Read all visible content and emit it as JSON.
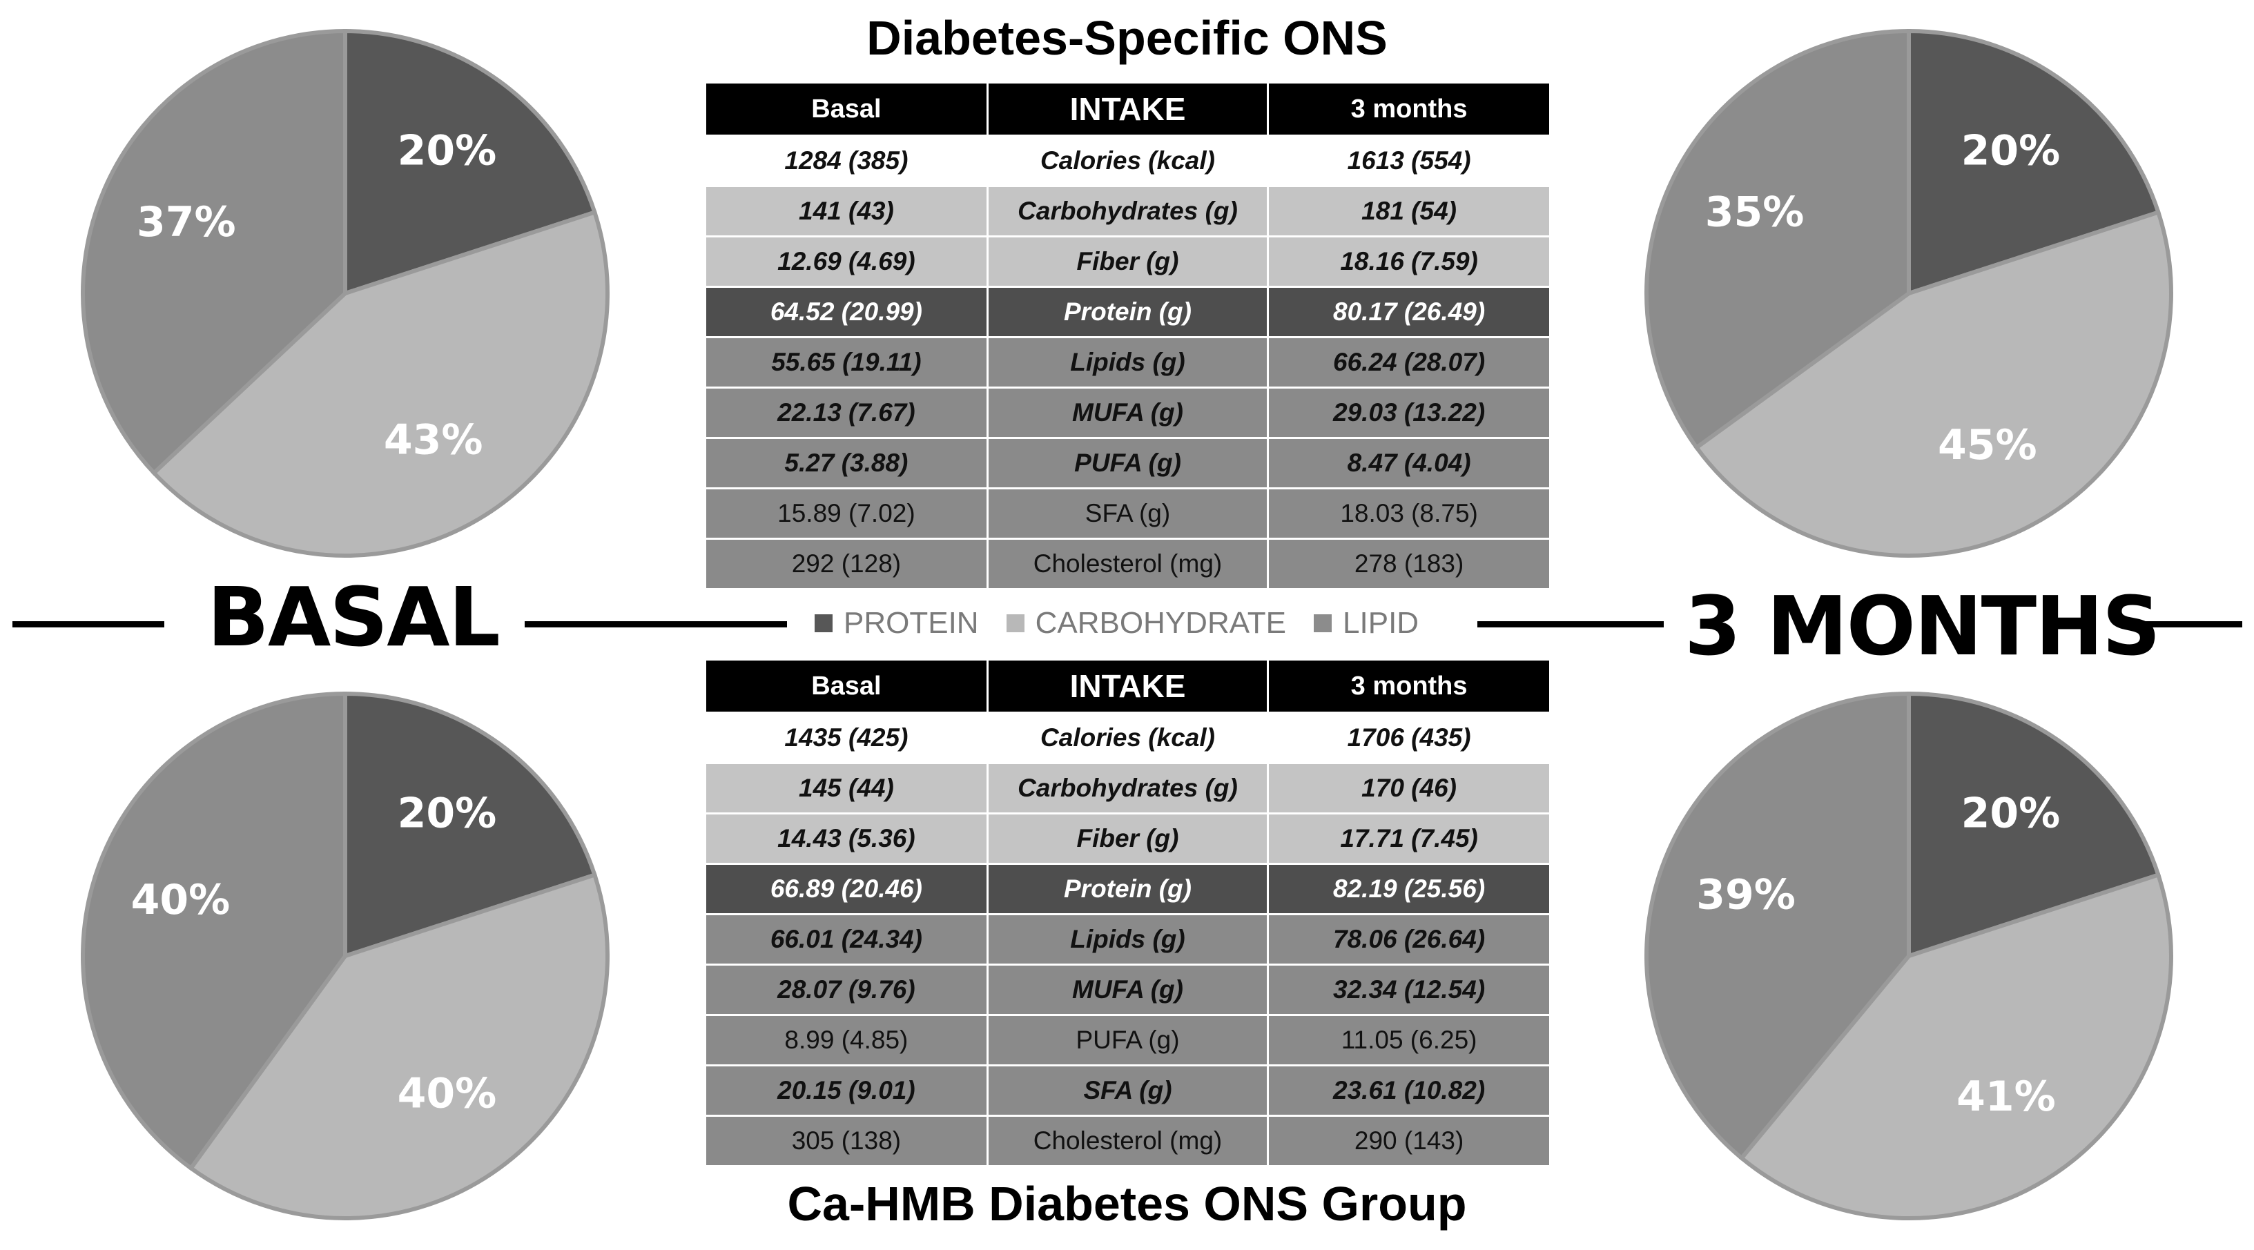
{
  "colors": {
    "protein": "#575757",
    "carbohydrate": "#b8b8b8",
    "lipid": "#8c8c8c",
    "stroke": "#9a9a9a"
  },
  "labels": {
    "basal": "BASAL",
    "three_months": "3 MONTHS"
  },
  "legend": [
    {
      "label": "PROTEIN",
      "color": "#575757"
    },
    {
      "label": "CARBOHYDRATE",
      "color": "#b8b8b8"
    },
    {
      "label": "LIPID",
      "color": "#8c8c8c"
    }
  ],
  "top": {
    "title": "Diabetes-Specific ONS",
    "headers": [
      "Basal",
      "INTAKE",
      "3 months"
    ],
    "rows": [
      {
        "basal": "1284 (385)",
        "intake": "Calories (kcal)",
        "months": "1613 (554)",
        "bold": true,
        "shade": "white"
      },
      {
        "basal": "141 (43)",
        "intake": "Carbohydrates (g)",
        "months": "181 (54)",
        "bold": true,
        "shade": "light"
      },
      {
        "basal": "12.69 (4.69)",
        "intake": "Fiber (g)",
        "months": "18.16 (7.59)",
        "bold": true,
        "shade": "light"
      },
      {
        "basal": "64.52 (20.99)",
        "intake": "Protein (g)",
        "months": "80.17 (26.49)",
        "bold": true,
        "shade": "dark"
      },
      {
        "basal": "55.65 (19.11)",
        "intake": "Lipids  (g)",
        "months": "66.24 (28.07)",
        "bold": true,
        "shade": "mid"
      },
      {
        "basal": "22.13 (7.67)",
        "intake": "MUFA (g)",
        "months": "29.03 (13.22)",
        "bold": true,
        "shade": "mid"
      },
      {
        "basal": "5.27 (3.88)",
        "intake": "PUFA (g)",
        "months": "8.47 (4.04)",
        "bold": true,
        "shade": "mid"
      },
      {
        "basal": "15.89 (7.02)",
        "intake": "SFA (g)",
        "months": "18.03 (8.75)",
        "bold": false,
        "shade": "mid"
      },
      {
        "basal": "292 (128)",
        "intake": "Cholesterol (mg)",
        "months": "278 (183)",
        "bold": false,
        "shade": "mid"
      }
    ]
  },
  "bottom": {
    "title": "Ca-HMB Diabetes ONS Group",
    "headers": [
      "Basal",
      "INTAKE",
      "3 months"
    ],
    "rows": [
      {
        "basal": "1435 (425)",
        "intake": "Calories (kcal)",
        "months": "1706 (435)",
        "bold": true,
        "shade": "white"
      },
      {
        "basal": "145 (44)",
        "intake": "Carbohydrates (g)",
        "months": "170 (46)",
        "bold": true,
        "shade": "light"
      },
      {
        "basal": "14.43 (5.36)",
        "intake": "Fiber (g)",
        "months": "17.71 (7.45)",
        "bold": true,
        "shade": "light"
      },
      {
        "basal": "66.89 (20.46)",
        "intake": "Protein (g)",
        "months": "82.19 (25.56)",
        "bold": true,
        "shade": "dark"
      },
      {
        "basal": "66.01 (24.34)",
        "intake": "Lipids  (g)",
        "months": "78.06 (26.64)",
        "bold": true,
        "shade": "mid"
      },
      {
        "basal": "28.07 (9.76)",
        "intake": "MUFA (g)",
        "months": "32.34 (12.54)",
        "bold": true,
        "shade": "mid"
      },
      {
        "basal": "8.99 (4.85)",
        "intake": "PUFA (g)",
        "months": "11.05 (6.25)",
        "bold": false,
        "shade": "mid"
      },
      {
        "basal": "20.15 (9.01)",
        "intake": "SFA (g)",
        "months": "23.61 (10.82)",
        "bold": true,
        "shade": "mid"
      },
      {
        "basal": "305 (138)",
        "intake": "Cholesterol (mg)",
        "months": "290 (143)",
        "bold": false,
        "shade": "mid"
      }
    ]
  },
  "chart_data": [
    {
      "type": "pie",
      "group": "Diabetes-Specific ONS",
      "timepoint": "BASAL",
      "slices": [
        {
          "name": "PROTEIN",
          "value": 20
        },
        {
          "name": "CARBOHYDRATE",
          "value": 43
        },
        {
          "name": "LIPID",
          "value": 37
        }
      ],
      "slice_labels": [
        "20%",
        "43%",
        "37%"
      ]
    },
    {
      "type": "pie",
      "group": "Diabetes-Specific ONS",
      "timepoint": "3 MONTHS",
      "slices": [
        {
          "name": "PROTEIN",
          "value": 20
        },
        {
          "name": "CARBOHYDRATE",
          "value": 45
        },
        {
          "name": "LIPID",
          "value": 35
        }
      ],
      "slice_labels": [
        "20%",
        "45%",
        "35%"
      ]
    },
    {
      "type": "pie",
      "group": "Ca-HMB Diabetes ONS Group",
      "timepoint": "BASAL",
      "slices": [
        {
          "name": "PROTEIN",
          "value": 20
        },
        {
          "name": "CARBOHYDRATE",
          "value": 40
        },
        {
          "name": "LIPID",
          "value": 40
        }
      ],
      "slice_labels": [
        "20%",
        "40%",
        "40%"
      ]
    },
    {
      "type": "pie",
      "group": "Ca-HMB Diabetes ONS Group",
      "timepoint": "3 MONTHS",
      "slices": [
        {
          "name": "PROTEIN",
          "value": 20
        },
        {
          "name": "CARBOHYDRATE",
          "value": 41
        },
        {
          "name": "LIPID",
          "value": 39
        }
      ],
      "slice_labels": [
        "20%",
        "41%",
        "39%"
      ]
    }
  ]
}
